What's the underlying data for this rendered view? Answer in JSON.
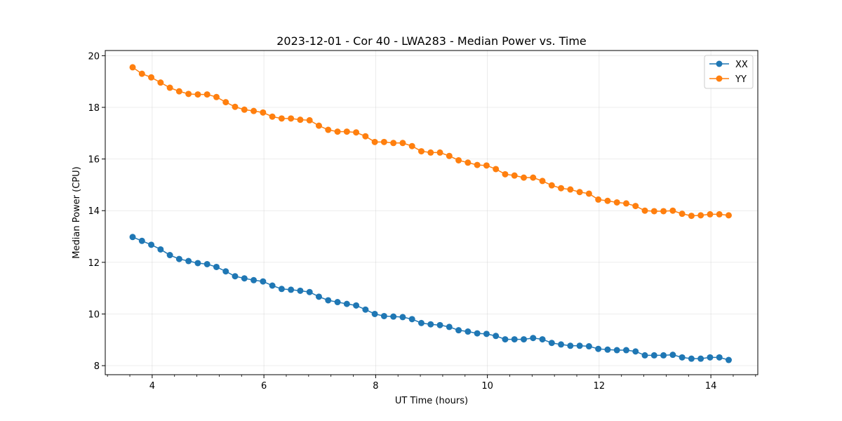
{
  "chart_data": {
    "type": "line",
    "title": "2023-12-01 - Cor 40 - LWA283 - Median Power vs. Time",
    "xlabel": "UT Time (hours)",
    "ylabel": "Median Power (CPU)",
    "xlim": [
      3.16,
      14.84
    ],
    "ylim": [
      7.65,
      20.2
    ],
    "x_ticks": [
      4,
      6,
      8,
      10,
      12,
      14
    ],
    "y_ticks": [
      8,
      10,
      12,
      14,
      16,
      18,
      20
    ],
    "x_minor_step": 0.4,
    "grid": true,
    "legend_position": "top-right",
    "x_start": 3.65,
    "x_step": 0.1667,
    "series": [
      {
        "name": "XX",
        "color": "#1f77b4",
        "marker": "circle",
        "values": [
          12.98,
          12.83,
          12.68,
          12.5,
          12.28,
          12.13,
          12.05,
          11.97,
          11.93,
          11.82,
          11.65,
          11.46,
          11.38,
          11.31,
          11.26,
          11.1,
          10.97,
          10.94,
          10.9,
          10.85,
          10.67,
          10.53,
          10.46,
          10.39,
          10.33,
          10.17,
          10.0,
          9.92,
          9.9,
          9.88,
          9.8,
          9.65,
          9.6,
          9.57,
          9.5,
          9.37,
          9.32,
          9.25,
          9.23,
          9.15,
          9.02,
          9.02,
          9.02,
          9.07,
          9.02,
          8.88,
          8.82,
          8.77,
          8.77,
          8.75,
          8.65,
          8.62,
          8.6,
          8.6,
          8.55,
          8.4,
          8.4,
          8.4,
          8.42,
          8.32,
          8.27,
          8.27,
          8.32,
          8.32,
          8.22
        ]
      },
      {
        "name": "YY",
        "color": "#ff7f0e",
        "marker": "circle",
        "values": [
          19.55,
          19.3,
          19.16,
          18.96,
          18.76,
          18.62,
          18.52,
          18.5,
          18.5,
          18.4,
          18.2,
          18.02,
          17.91,
          17.86,
          17.8,
          17.64,
          17.57,
          17.57,
          17.52,
          17.5,
          17.29,
          17.13,
          17.06,
          17.06,
          17.03,
          16.88,
          16.66,
          16.66,
          16.62,
          16.62,
          16.5,
          16.3,
          16.25,
          16.25,
          16.12,
          15.95,
          15.86,
          15.77,
          15.75,
          15.61,
          15.41,
          15.36,
          15.28,
          15.28,
          15.15,
          14.98,
          14.87,
          14.82,
          14.72,
          14.66,
          14.43,
          14.38,
          14.32,
          14.28,
          14.18,
          14.0,
          13.98,
          13.98,
          14.0,
          13.88,
          13.8,
          13.82,
          13.86,
          13.86,
          13.82
        ]
      }
    ]
  }
}
